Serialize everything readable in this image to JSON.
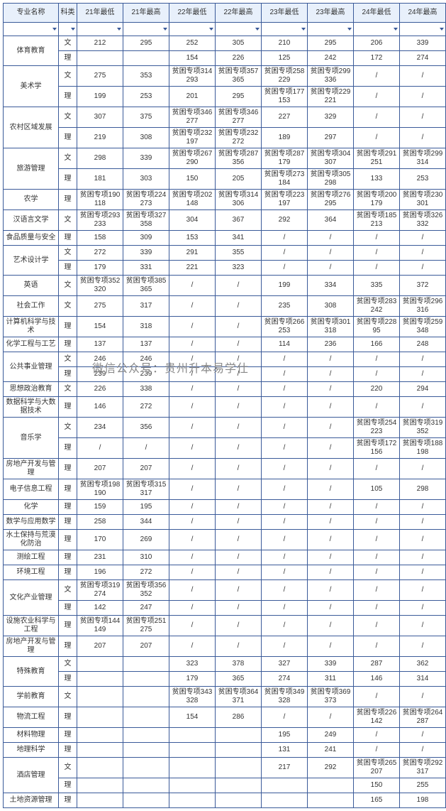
{
  "columns": [
    "专业名称",
    "科类",
    "21年最低",
    "21年最高",
    "22年最低",
    "22年最高",
    "23年最低",
    "23年最高",
    "24年最低",
    "24年最高"
  ],
  "watermark_circle": "贵州\n专升本",
  "watermark_text": "微信公众号：贵州升本易学仕",
  "rows": [
    {
      "major": "体育教育",
      "kelei": "文",
      "v": [
        "212",
        "295",
        "252",
        "305",
        "210",
        "295",
        "206",
        "339"
      ]
    },
    {
      "major": "",
      "kelei": "理",
      "v": [
        "",
        "",
        "154",
        "226",
        "125",
        "242",
        "172",
        "274"
      ]
    },
    {
      "major": "美术学",
      "kelei": "文",
      "v": [
        "275",
        "353",
        "贫困专项314\n293",
        "贫困专项357\n365",
        "贫困专项258\n229",
        "贫困专项299\n336",
        "/",
        "/"
      ]
    },
    {
      "major": "",
      "kelei": "理",
      "v": [
        "199",
        "253",
        "201",
        "295",
        "贫困专项177\n153",
        "贫困专项229\n221",
        "/",
        "/"
      ]
    },
    {
      "major": "农村区域发展",
      "kelei": "文",
      "v": [
        "307",
        "375",
        "贫困专项346\n277",
        "贫困专项346\n277",
        "227",
        "329",
        "/",
        "/"
      ]
    },
    {
      "major": "",
      "kelei": "理",
      "v": [
        "219",
        "308",
        "贫困专项232\n197",
        "贫困专项232\n272",
        "189",
        "297",
        "/",
        "/"
      ]
    },
    {
      "major": "旅游管理",
      "kelei": "文",
      "v": [
        "298",
        "339",
        "贫困专项267\n290",
        "贫困专项287\n356",
        "贫困专项287\n179",
        "贫困专项304\n307",
        "贫困专项291\n251",
        "贫困专项299\n314"
      ]
    },
    {
      "major": "",
      "kelei": "理",
      "v": [
        "181",
        "303",
        "150",
        "205",
        "贫困专项273\n184",
        "贫困专项305\n298",
        "133",
        "253"
      ]
    },
    {
      "major": "农学",
      "kelei": "理",
      "v": [
        "贫困专项190\n118",
        "贫困专项224\n273",
        "贫困专项202\n148",
        "贫困专项314\n306",
        "贫困专项223\n197",
        "贫困专项276\n295",
        "贫困专项200\n179",
        "贫困专项230\n301"
      ]
    },
    {
      "major": "汉语言文学",
      "kelei": "文",
      "v": [
        "贫困专项293\n233",
        "贫困专项327\n358",
        "304",
        "367",
        "292",
        "364",
        "贫困专项185\n213",
        "贫困专项326\n332"
      ]
    },
    {
      "major": "食品质量与安全",
      "kelei": "理",
      "v": [
        "158",
        "309",
        "153",
        "341",
        "/",
        "/",
        "/",
        "/"
      ]
    },
    {
      "major": "艺术设计学",
      "kelei": "文",
      "v": [
        "272",
        "339",
        "291",
        "355",
        "/",
        "/",
        "/",
        "/"
      ]
    },
    {
      "major": "",
      "kelei": "理",
      "v": [
        "179",
        "331",
        "221",
        "323",
        "/",
        "/",
        "/",
        "/"
      ]
    },
    {
      "major": "英语",
      "kelei": "文",
      "v": [
        "贫困专项352\n320",
        "贫困专项385\n365",
        "/",
        "/",
        "199",
        "334",
        "335",
        "372"
      ]
    },
    {
      "major": "社会工作",
      "kelei": "文",
      "v": [
        "275",
        "317",
        "/",
        "/",
        "235",
        "308",
        "贫困专项283\n242",
        "贫困专项296\n316"
      ]
    },
    {
      "major": "计算机科学与技术",
      "kelei": "理",
      "v": [
        "154",
        "318",
        "/",
        "/",
        "贫困专项266\n253",
        "贫困专项301\n318",
        "贫困专项228\n95",
        "贫困专项259\n348"
      ]
    },
    {
      "major": "化学工程与工艺",
      "kelei": "理",
      "v": [
        "137",
        "137",
        "/",
        "/",
        "114",
        "236",
        "166",
        "248"
      ]
    },
    {
      "major": "公共事业管理",
      "kelei": "文",
      "v": [
        "246",
        "246",
        "/",
        "/",
        "/",
        "/",
        "/",
        "/"
      ]
    },
    {
      "major": "",
      "kelei": "理",
      "v": [
        "239",
        "239",
        "/",
        "/",
        "/",
        "/",
        "/",
        "/"
      ]
    },
    {
      "major": "思想政治教育",
      "kelei": "文",
      "v": [
        "226",
        "338",
        "/",
        "/",
        "/",
        "/",
        "220",
        "294"
      ]
    },
    {
      "major": "数据科学与大数据技术",
      "kelei": "理",
      "v": [
        "146",
        "272",
        "/",
        "/",
        "/",
        "/",
        "/",
        "/"
      ]
    },
    {
      "major": "音乐学",
      "kelei": "文",
      "v": [
        "234",
        "356",
        "/",
        "/",
        "/",
        "/",
        "贫困专项254\n223",
        "贫困专项319\n352"
      ]
    },
    {
      "major": "",
      "kelei": "理",
      "v": [
        "/",
        "/",
        "/",
        "/",
        "/",
        "/",
        "贫困专项172\n156",
        "贫困专项188\n198"
      ]
    },
    {
      "major": "房地产开发与管理",
      "kelei": "理",
      "v": [
        "207",
        "207",
        "/",
        "/",
        "/",
        "/",
        "/",
        "/"
      ]
    },
    {
      "major": "电子信息工程",
      "kelei": "理",
      "v": [
        "贫困专项198\n190",
        "贫困专项315\n317",
        "/",
        "/",
        "/",
        "/",
        "105",
        "298"
      ]
    },
    {
      "major": "化学",
      "kelei": "理",
      "v": [
        "159",
        "195",
        "/",
        "/",
        "/",
        "/",
        "/",
        "/"
      ]
    },
    {
      "major": "数学与应用数学",
      "kelei": "理",
      "v": [
        "258",
        "344",
        "/",
        "/",
        "/",
        "/",
        "/",
        "/"
      ]
    },
    {
      "major": "水土保持与荒漠化防治",
      "kelei": "理",
      "v": [
        "170",
        "269",
        "/",
        "/",
        "/",
        "/",
        "/",
        "/"
      ]
    },
    {
      "major": "测绘工程",
      "kelei": "理",
      "v": [
        "231",
        "310",
        "/",
        "/",
        "/",
        "/",
        "/",
        "/"
      ]
    },
    {
      "major": "环境工程",
      "kelei": "理",
      "v": [
        "196",
        "272",
        "/",
        "/",
        "/",
        "/",
        "/",
        "/"
      ]
    },
    {
      "major": "文化产业管理",
      "kelei": "文",
      "v": [
        "贫困专项319\n274",
        "贫困专项356\n352",
        "/",
        "/",
        "/",
        "/",
        "/",
        "/"
      ]
    },
    {
      "major": "",
      "kelei": "理",
      "v": [
        "142",
        "247",
        "/",
        "/",
        "/",
        "/",
        "/",
        "/"
      ]
    },
    {
      "major": "设施农业科学与工程",
      "kelei": "理",
      "v": [
        "贫困专项144\n149",
        "贫困专项251\n275",
        "/",
        "/",
        "/",
        "/",
        "/",
        "/"
      ]
    },
    {
      "major": "房地产开发与管理",
      "kelei": "理",
      "v": [
        "207",
        "207",
        "/",
        "/",
        "/",
        "/",
        "/",
        "/"
      ]
    },
    {
      "major": "特殊教育",
      "kelei": "文",
      "v": [
        "",
        "",
        "323",
        "378",
        "327",
        "339",
        "287",
        "362"
      ]
    },
    {
      "major": "",
      "kelei": "理",
      "v": [
        "",
        "",
        "179",
        "365",
        "274",
        "311",
        "146",
        "314"
      ]
    },
    {
      "major": "学前教育",
      "kelei": "文",
      "v": [
        "",
        "",
        "贫困专项343\n328",
        "贫困专项364\n371",
        "贫困专项349\n328",
        "贫困专项369\n373",
        "/",
        "/"
      ]
    },
    {
      "major": "物流工程",
      "kelei": "理",
      "v": [
        "",
        "",
        "154",
        "286",
        "/",
        "/",
        "贫困专项226\n142",
        "贫困专项264\n287"
      ]
    },
    {
      "major": "材料物理",
      "kelei": "理",
      "v": [
        "",
        "",
        "",
        "",
        "195",
        "249",
        "/",
        "/"
      ]
    },
    {
      "major": "地理科学",
      "kelei": "理",
      "v": [
        "",
        "",
        "",
        "",
        "131",
        "241",
        "/",
        "/"
      ]
    },
    {
      "major": "酒店管理",
      "kelei": "文",
      "v": [
        "",
        "",
        "",
        "",
        "217",
        "292",
        "贫困专项265\n207",
        "贫困专项292\n317"
      ]
    },
    {
      "major": "",
      "kelei": "理",
      "v": [
        "",
        "",
        "",
        "",
        "",
        "",
        "150",
        "255"
      ]
    },
    {
      "major": "土地资源管理",
      "kelei": "理",
      "v": [
        "",
        "",
        "",
        "",
        "",
        "",
        "165",
        "198"
      ]
    }
  ],
  "merges": [
    {
      "start": 0,
      "span": 2
    },
    {
      "start": 2,
      "span": 2
    },
    {
      "start": 4,
      "span": 2
    },
    {
      "start": 6,
      "span": 2
    },
    {
      "start": 11,
      "span": 2
    },
    {
      "start": 17,
      "span": 2
    },
    {
      "start": 21,
      "span": 2
    },
    {
      "start": 30,
      "span": 2
    },
    {
      "start": 34,
      "span": 2
    },
    {
      "start": 40,
      "span": 2
    }
  ]
}
